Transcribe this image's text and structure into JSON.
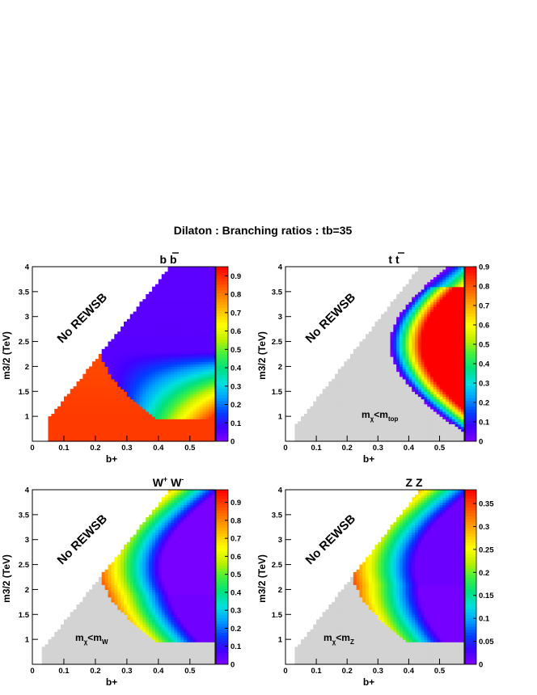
{
  "figure": {
    "title": "Dilaton : Branching ratios : tb=35"
  },
  "chart_data": [
    {
      "type": "heatmap",
      "panel": "top-left",
      "title": "b b̄",
      "title_parts": {
        "base": "b b",
        "overbar": "b"
      },
      "xlabel": "b+",
      "ylabel": "m3/2 (TeV)",
      "xlim": [
        0,
        0.58
      ],
      "ylim": [
        0.5,
        4.0
      ],
      "xticks": [
        "0",
        "0.1",
        "0.2",
        "0.3",
        "0.4",
        "0.5"
      ],
      "yticks": [
        "1",
        "1.5",
        "2",
        "2.5",
        "3",
        "3.5",
        "4"
      ],
      "zlim": [
        0,
        0.95
      ],
      "colorbar_ticks": [
        "0",
        "0.1",
        "0.2",
        "0.3",
        "0.4",
        "0.5",
        "0.6",
        "0.7",
        "0.8",
        "0.9"
      ],
      "region_label": "No REWSB",
      "mass_condition": "",
      "model": "bb",
      "grid": false
    },
    {
      "type": "heatmap",
      "panel": "top-right",
      "title": "t t̄",
      "title_parts": {
        "base": "t t",
        "overbar": "t"
      },
      "xlabel": "b+",
      "ylabel": "m3/2 (TeV)",
      "xlim": [
        0,
        0.58
      ],
      "ylim": [
        0.5,
        4.0
      ],
      "xticks": [
        "0",
        "0.1",
        "0.2",
        "0.3",
        "0.4",
        "0.5"
      ],
      "yticks": [
        "1",
        "1.5",
        "2",
        "2.5",
        "3",
        "3.5",
        "4"
      ],
      "zlim": [
        0,
        0.9
      ],
      "colorbar_ticks": [
        "0",
        "0.1",
        "0.2",
        "0.3",
        "0.4",
        "0.5",
        "0.6",
        "0.7",
        "0.8",
        "0.9"
      ],
      "region_label": "No REWSB",
      "mass_condition": {
        "m": "m",
        "chi": "χ",
        "lt": "<m",
        "sub": "top"
      },
      "model": "tt",
      "grid": false
    },
    {
      "type": "heatmap",
      "panel": "bottom-left",
      "title": "W+ W-",
      "title_parts": {
        "base1": "W",
        "sup1": "+",
        "base2": " W",
        "sup2": "-"
      },
      "xlabel": "b+",
      "ylabel": "m3/2 (TeV)",
      "xlim": [
        0,
        0.58
      ],
      "ylim": [
        0.5,
        4.0
      ],
      "xticks": [
        "0",
        "0.1",
        "0.2",
        "0.3",
        "0.4",
        "0.5"
      ],
      "yticks": [
        "1",
        "1.5",
        "2",
        "2.5",
        "3",
        "3.5",
        "4"
      ],
      "zlim": [
        0,
        0.97
      ],
      "colorbar_ticks": [
        "0",
        "0.1",
        "0.2",
        "0.3",
        "0.4",
        "0.5",
        "0.6",
        "0.7",
        "0.8",
        "0.9"
      ],
      "region_label": "No REWSB",
      "mass_condition": {
        "m": "m",
        "chi": "χ",
        "lt": "<m",
        "sub": "W"
      },
      "model": "ww",
      "grid": false
    },
    {
      "type": "heatmap",
      "panel": "bottom-right",
      "title": "Z Z",
      "xlabel": "b+",
      "ylabel": "m3/2 (TeV)",
      "xlim": [
        0,
        0.58
      ],
      "ylim": [
        0.5,
        4.0
      ],
      "xticks": [
        "0",
        "0.1",
        "0.2",
        "0.3",
        "0.4",
        "0.5"
      ],
      "yticks": [
        "1",
        "1.5",
        "2",
        "2.5",
        "3",
        "3.5",
        "4"
      ],
      "zlim": [
        0,
        0.38
      ],
      "colorbar_ticks": [
        "0",
        "0.05",
        "0.1",
        "0.15",
        "0.2",
        "0.25",
        "0.3",
        "0.35"
      ],
      "region_label": "No REWSB",
      "mass_condition": {
        "m": "m",
        "chi": "χ",
        "lt": "<m",
        "sub": "Z"
      },
      "model": "zz",
      "grid": false
    }
  ],
  "colors": {
    "excluded_region": "#d3d3d3",
    "palette": [
      "#8000ff",
      "#4000ff",
      "#0040ff",
      "#00a0ff",
      "#00e0e0",
      "#00e080",
      "#40f040",
      "#c0f000",
      "#ffff00",
      "#ffc000",
      "#ff8000",
      "#ff4000",
      "#ff0000"
    ]
  }
}
